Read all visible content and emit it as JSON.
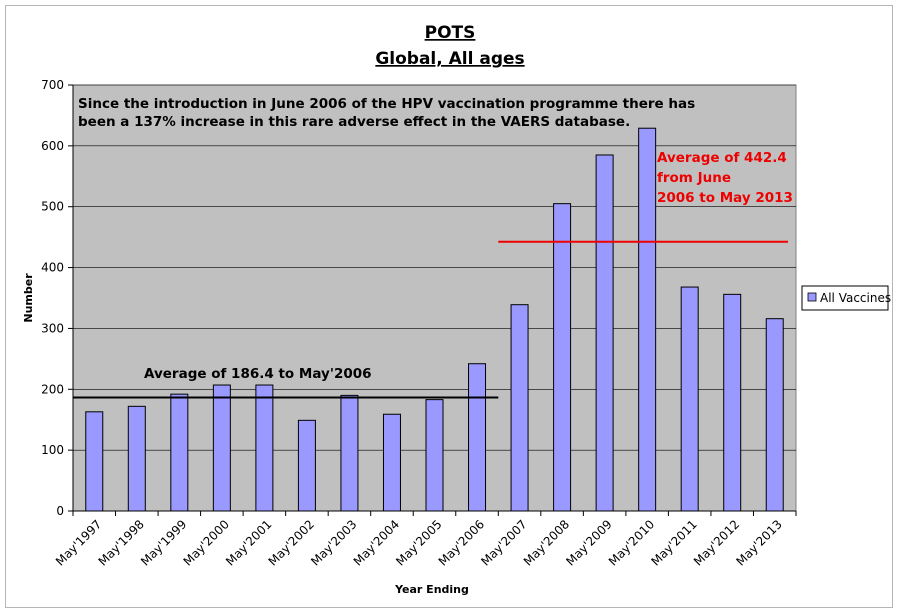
{
  "chart_data": {
    "type": "bar",
    "title": "POTS",
    "subtitle": "Global, All ages",
    "xlabel": "Year Ending",
    "ylabel": "Number",
    "ylim": [
      0,
      700
    ],
    "yticks": [
      0,
      100,
      200,
      300,
      400,
      500,
      600,
      700
    ],
    "grid": true,
    "legend_position": "right",
    "categories": [
      "May'1997",
      "May'1998",
      "May'1999",
      "May'2000",
      "May'2001",
      "May'2002",
      "May'2003",
      "May'2004",
      "May'2005",
      "May'2006",
      "May'2007",
      "May'2008",
      "May'2009",
      "May'2010",
      "May'2011",
      "May'2012",
      "May'2013"
    ],
    "series": [
      {
        "name": "All Vaccines",
        "color": "#9999ff",
        "values": [
          163,
          172,
          192,
          207,
          207,
          149,
          190,
          159,
          183,
          242,
          339,
          505,
          585,
          629,
          368,
          356,
          316
        ]
      }
    ],
    "reference_lines": [
      {
        "value": 186.4,
        "from_category": "May'1997",
        "to_category": "May'2006",
        "color": "#000000",
        "label": "Average of 186.4 to May'2006"
      },
      {
        "value": 442.4,
        "from_category": "May'2007",
        "to_category": "May'2013",
        "color": "#ee0000",
        "label_lines": [
          "Average of 442.4",
          "from June",
          "2006 to May 2013"
        ]
      }
    ],
    "annotation_lines": [
      "Since the introduction in June 2006 of the HPV vaccination programme there has",
      "been a 137% increase in this rare adverse effect in the VAERS database."
    ],
    "plot_background": "#c0c0c0"
  }
}
